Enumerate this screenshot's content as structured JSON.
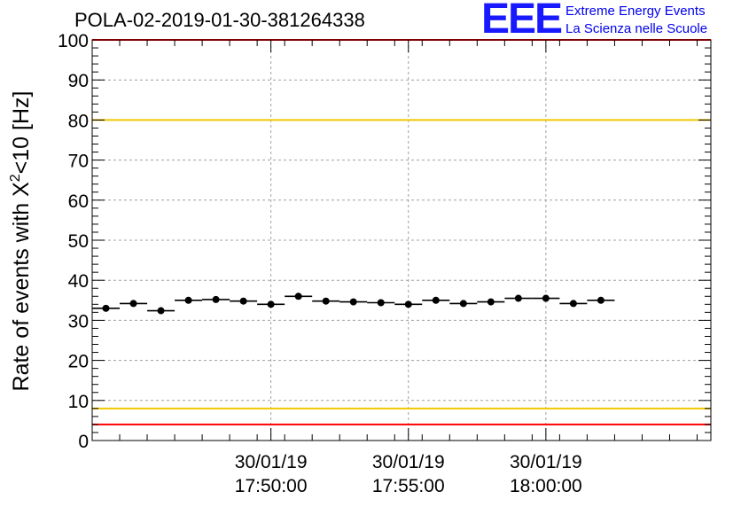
{
  "chart_data": {
    "type": "scatter",
    "title": "POLA-02-2019-01-30-381264338",
    "ylabel_main": "Rate of events with X",
    "ylabel_sup": "2",
    "ylabel_tail": "<10 [Hz]",
    "ylim": [
      0,
      100
    ],
    "yticks": [
      "0",
      "10",
      "20",
      "30",
      "40",
      "50",
      "60",
      "70",
      "80",
      "90",
      "100"
    ],
    "grid": true,
    "xticks": [
      {
        "date": "30/01/19",
        "time": "17:50:00",
        "minute": 11.5
      },
      {
        "date": "30/01/19",
        "time": "17:55:00",
        "minute": 16.5
      },
      {
        "date": "30/01/19",
        "time": "18:00:00",
        "minute": 21.5
      }
    ],
    "xlim": [
      5.0,
      27.5
    ],
    "bin_width": 1.0,
    "points": [
      {
        "x": 5.5,
        "y": 33.0
      },
      {
        "x": 6.5,
        "y": 34.2
      },
      {
        "x": 7.5,
        "y": 32.4
      },
      {
        "x": 8.5,
        "y": 35.0
      },
      {
        "x": 9.5,
        "y": 35.2
      },
      {
        "x": 10.5,
        "y": 34.8
      },
      {
        "x": 11.5,
        "y": 34.0
      },
      {
        "x": 12.5,
        "y": 36.0
      },
      {
        "x": 13.5,
        "y": 34.8
      },
      {
        "x": 14.5,
        "y": 34.6
      },
      {
        "x": 15.5,
        "y": 34.4
      },
      {
        "x": 16.5,
        "y": 34.0
      },
      {
        "x": 17.5,
        "y": 35.0
      },
      {
        "x": 18.5,
        "y": 34.2
      },
      {
        "x": 19.5,
        "y": 34.6
      },
      {
        "x": 20.5,
        "y": 35.5
      },
      {
        "x": 21.5,
        "y": 35.5
      },
      {
        "x": 22.5,
        "y": 34.2
      },
      {
        "x": 23.5,
        "y": 35.0
      }
    ],
    "reference_lines": [
      {
        "y": 80,
        "color": "#f0c800"
      },
      {
        "y": 8,
        "color": "#f0c800"
      },
      {
        "y": 4,
        "color": "#ff0000"
      },
      {
        "y": 100,
        "color": "#ff0000"
      }
    ]
  },
  "logo": {
    "mark": "EEE",
    "line1": "Extreme Energy Events",
    "line2": "La Scienza nelle Scuole"
  }
}
